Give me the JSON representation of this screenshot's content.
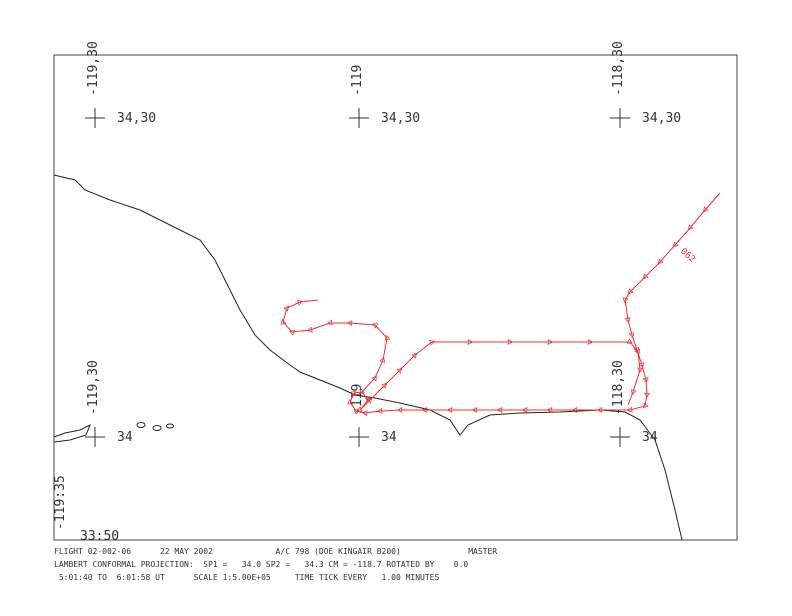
{
  "map": {
    "crosses": [
      {
        "lat_label": "34,30",
        "lon_label": "-119,30"
      },
      {
        "lat_label": "34,30",
        "lon_label": "-119"
      },
      {
        "lat_label": "34,30",
        "lon_label": "-118,30"
      },
      {
        "lat_label": "34",
        "lon_label": "-119,30"
      },
      {
        "lat_label": "34",
        "lon_label": "-119"
      },
      {
        "lat_label": "34",
        "lon_label": "-118,30"
      }
    ],
    "corner_lon": "-119:35",
    "corner_lat": "33:50",
    "track_label": "062",
    "footer": [
      "FLIGHT 02-002-06      22 MAY 2002             A/C 798 (DOE KINGAIR B200)              MASTER",
      "LAMBERT CONFORMAL PROJECTION:  SP1 =   34.0 SP2 =   34.3 CM = -118.7 ROTATED BY    0.0",
      " 5:01:40 TO  6:01:58 UT      SCALE 1:5.00E+05     TIME TICK EVERY   1.00 MINUTES"
    ]
  }
}
